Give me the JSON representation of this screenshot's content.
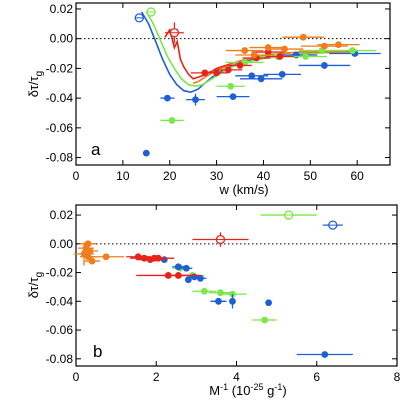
{
  "chart_data": [
    {
      "type": "scatter",
      "panel_label": "a",
      "xlabel": "w (km/s)",
      "ylabel_main": "δτ/τ",
      "ylabel_sub": "g",
      "xlim": [
        0,
        67
      ],
      "ylim": [
        -0.085,
        0.024
      ],
      "xticks": [
        "0",
        "10",
        "20",
        "30",
        "40",
        "50",
        "60"
      ],
      "yticks": [
        "0.02",
        "0.00",
        "-0.02",
        "-0.04",
        "-0.06",
        "-0.08"
      ],
      "ytick_values": [
        0.02,
        0.0,
        -0.02,
        -0.04,
        -0.06,
        -0.08
      ],
      "xtick_values": [
        0,
        10,
        20,
        30,
        40,
        50,
        60
      ],
      "zero_line": "dotted",
      "colors": {
        "blue": "#1f5fd6",
        "red": "#e8231a",
        "orange": "#f07c1c",
        "green": "#7ae84a"
      },
      "series": [
        {
          "color": "blue",
          "points": [
            {
              "x": 13.5,
              "y": 0.014,
              "xerr": 1.0,
              "open": true
            },
            {
              "x": 15.0,
              "y": -0.077
            },
            {
              "x": 19.5,
              "y": -0.04,
              "xerr": 1.5
            },
            {
              "x": 25.5,
              "y": -0.041,
              "xerr": 2.0,
              "yerr": 0.004
            },
            {
              "x": 33.5,
              "y": -0.039,
              "xerr": 3.5
            },
            {
              "x": 37.5,
              "y": -0.025,
              "xerr": 3.5
            },
            {
              "x": 39.5,
              "y": -0.027,
              "xerr": 4.5
            },
            {
              "x": 44.0,
              "y": -0.024,
              "xerr": 4.0
            },
            {
              "x": 47.0,
              "y": -0.011,
              "xerr": 4.5
            },
            {
              "x": 53.0,
              "y": -0.018,
              "xerr": 5.5
            },
            {
              "x": 59.5,
              "y": -0.01,
              "xerr": 5.5
            }
          ]
        },
        {
          "color": "green",
          "points": [
            {
              "x": 16.0,
              "y": 0.018,
              "xerr": 1.0,
              "open": true
            },
            {
              "x": 20.5,
              "y": -0.055,
              "xerr": 2.5
            },
            {
              "x": 33.0,
              "y": -0.032,
              "xerr": 3.0
            },
            {
              "x": 36.0,
              "y": -0.016,
              "xerr": 4.0
            },
            {
              "x": 43.0,
              "y": -0.012,
              "xerr": 4.0
            },
            {
              "x": 49.0,
              "y": -0.012,
              "xerr": 4.5
            },
            {
              "x": 52.5,
              "y": -0.008,
              "xerr": 5.0
            },
            {
              "x": 59.0,
              "y": -0.008,
              "xerr": 5.0
            }
          ]
        },
        {
          "color": "red",
          "points": [
            {
              "x": 21.0,
              "y": 0.004,
              "xerr": 2.0,
              "yerr": 0.007,
              "open": true
            },
            {
              "x": 27.5,
              "y": -0.023,
              "xerr": 3.0
            },
            {
              "x": 30.0,
              "y": -0.023,
              "xerr": 2.5
            },
            {
              "x": 32.5,
              "y": -0.021,
              "xerr": 3.0
            },
            {
              "x": 35.0,
              "y": -0.018,
              "xerr": 2.5
            },
            {
              "x": 38.5,
              "y": -0.013,
              "xerr": 3.0
            },
            {
              "x": 41.0,
              "y": -0.009,
              "xerr": 3.5
            },
            {
              "x": 43.5,
              "y": -0.012,
              "xerr": 3.0
            }
          ]
        },
        {
          "color": "orange",
          "points": [
            {
              "x": 36.0,
              "y": -0.008,
              "xerr": 4.0
            },
            {
              "x": 38.0,
              "y": -0.011,
              "xerr": 4.0
            },
            {
              "x": 41.0,
              "y": -0.006,
              "xerr": 4.0
            },
            {
              "x": 44.5,
              "y": -0.007,
              "xerr": 4.0
            },
            {
              "x": 48.5,
              "y": 0.001,
              "xerr": 4.5
            },
            {
              "x": 53.0,
              "y": -0.005,
              "xerr": 5.0
            },
            {
              "x": 56.0,
              "y": -0.004,
              "xerr": 4.5
            }
          ]
        }
      ],
      "curves": [
        {
          "color": "blue",
          "x": [
            14,
            15.5,
            17,
            18.5,
            20,
            21.5,
            23,
            24.5,
            26,
            27.5,
            29,
            31,
            33,
            35,
            38,
            42,
            46,
            50,
            55,
            60
          ],
          "y": [
            0.018,
            0.01,
            -0.002,
            -0.014,
            -0.024,
            -0.031,
            -0.035,
            -0.036,
            -0.034,
            -0.03,
            -0.026,
            -0.022,
            -0.019,
            -0.016,
            -0.014,
            -0.012,
            -0.011,
            -0.01,
            -0.009,
            -0.009
          ]
        },
        {
          "color": "green",
          "x": [
            15,
            16.5,
            18,
            19.5,
            21,
            22.5,
            24,
            25.5,
            27,
            28.5,
            30,
            32,
            34,
            36,
            39,
            43,
            47,
            51,
            55,
            60
          ],
          "y": [
            0.018,
            0.01,
            -0.001,
            -0.012,
            -0.02,
            -0.027,
            -0.031,
            -0.032,
            -0.031,
            -0.028,
            -0.025,
            -0.021,
            -0.018,
            -0.016,
            -0.014,
            -0.012,
            -0.011,
            -0.01,
            -0.009,
            -0.009
          ]
        },
        {
          "color": "red",
          "x": [
            19,
            20,
            21,
            21.6,
            22.3,
            23,
            24,
            25,
            26,
            27,
            28,
            29,
            30,
            32,
            34,
            36,
            38,
            41,
            44,
            48,
            52,
            56,
            60
          ],
          "y": [
            0.001,
            0.006,
            -0.006,
            -0.002,
            -0.014,
            -0.019,
            -0.024,
            -0.027,
            -0.026,
            -0.025,
            -0.023,
            -0.022,
            -0.02,
            -0.018,
            -0.016,
            -0.014,
            -0.013,
            -0.011,
            -0.01,
            -0.009,
            -0.009,
            -0.009,
            -0.008
          ]
        },
        {
          "color": "orange",
          "x": [
            25,
            26,
            27,
            28,
            29,
            30,
            32,
            34,
            36,
            38,
            41,
            44,
            48,
            52,
            56,
            60
          ],
          "y": [
            -0.03,
            -0.029,
            -0.027,
            -0.025,
            -0.023,
            -0.021,
            -0.019,
            -0.016,
            -0.014,
            -0.013,
            -0.011,
            -0.01,
            -0.009,
            -0.009,
            -0.009,
            -0.009
          ]
        }
      ]
    },
    {
      "type": "scatter",
      "panel_label": "b",
      "xlabel_main": "M",
      "xlabel_sup": "-1",
      "xlabel_tail": " (10",
      "xlabel_sup2": "-25",
      "xlabel_end": " g",
      "xlabel_sup3": "-1",
      "xlabel_close": ")",
      "ylabel_main": "δτ/τ",
      "ylabel_sub": "g",
      "xlim": [
        0,
        8
      ],
      "ylim": [
        -0.085,
        0.027
      ],
      "xticks": [
        "0",
        "2",
        "4",
        "6",
        "8"
      ],
      "xtick_values": [
        0,
        2,
        4,
        6,
        8
      ],
      "yticks": [
        "0.02",
        "0.00",
        "-0.02",
        "-0.04",
        "-0.06",
        "-0.08"
      ],
      "ytick_values": [
        0.02,
        0.0,
        -0.02,
        -0.04,
        -0.06,
        -0.08
      ],
      "zero_line": "dotted",
      "series": [
        {
          "color": "green",
          "points": [
            {
              "x": 5.3,
              "y": 0.02,
              "xerr": 0.7,
              "open": true
            },
            {
              "x": 4.7,
              "y": -0.053,
              "xerr": 0.3
            },
            {
              "x": 3.2,
              "y": -0.033,
              "xerr": 0.3
            },
            {
              "x": 3.6,
              "y": -0.034,
              "xerr": 0.3
            },
            {
              "x": 3.9,
              "y": -0.035,
              "xerr": 0.35
            },
            {
              "x": 2.9,
              "y": -0.022,
              "xerr": 0.3
            },
            {
              "x": 2.6,
              "y": -0.017,
              "xerr": 0.2
            }
          ]
        },
        {
          "color": "blue",
          "points": [
            {
              "x": 6.4,
              "y": 0.013,
              "xerr": 0.25,
              "open": true
            },
            {
              "x": 6.2,
              "y": -0.077,
              "xerr": 0.7
            },
            {
              "x": 4.8,
              "y": -0.041
            },
            {
              "x": 3.9,
              "y": -0.04,
              "yerr": 0.005
            },
            {
              "x": 3.55,
              "y": -0.04,
              "xerr": 0.2
            },
            {
              "x": 2.55,
              "y": -0.016,
              "xerr": 0.15
            },
            {
              "x": 2.75,
              "y": -0.017,
              "xerr": 0.15
            },
            {
              "x": 2.95,
              "y": -0.023,
              "xerr": 0.15
            },
            {
              "x": 3.1,
              "y": -0.024,
              "xerr": 0.15
            },
            {
              "x": 2.8,
              "y": -0.025
            },
            {
              "x": 2.2,
              "y": -0.011
            }
          ]
        },
        {
          "color": "red",
          "points": [
            {
              "x": 3.6,
              "y": 0.003,
              "xerr": 0.7,
              "yerr": 0.005,
              "open": true
            },
            {
              "x": 1.55,
              "y": -0.009,
              "xerr": 0.3
            },
            {
              "x": 1.7,
              "y": -0.01,
              "xerr": 0.35
            },
            {
              "x": 1.85,
              "y": -0.011,
              "xerr": 0.35
            },
            {
              "x": 1.95,
              "y": -0.01,
              "xerr": 0.3
            },
            {
              "x": 2.05,
              "y": -0.01,
              "xerr": 0.4
            },
            {
              "x": 2.3,
              "y": -0.022,
              "xerr": 0.8
            },
            {
              "x": 2.55,
              "y": -0.022,
              "xerr": 0.4
            }
          ]
        },
        {
          "color": "orange",
          "points": [
            {
              "x": 0.3,
              "y": 0.0,
              "xerr": 0.2
            },
            {
              "x": 0.25,
              "y": -0.003,
              "xerr": 0.2
            },
            {
              "x": 0.35,
              "y": -0.005,
              "xerr": 0.2
            },
            {
              "x": 0.2,
              "y": -0.007,
              "xerr": 0.25,
              "yerr": 0.008
            },
            {
              "x": 0.3,
              "y": -0.009,
              "xerr": 0.2
            },
            {
              "x": 0.75,
              "y": -0.009,
              "xerr": 0.45
            },
            {
              "x": 0.4,
              "y": -0.012,
              "xerr": 0.2
            }
          ]
        }
      ]
    }
  ]
}
